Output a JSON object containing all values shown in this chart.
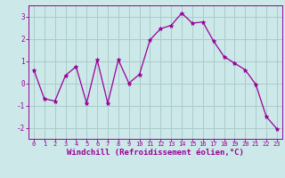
{
  "x": [
    0,
    1,
    2,
    3,
    4,
    5,
    6,
    7,
    8,
    9,
    10,
    11,
    12,
    13,
    14,
    15,
    16,
    17,
    18,
    19,
    20,
    21,
    22,
    23
  ],
  "y": [
    0.6,
    -0.7,
    -0.8,
    0.35,
    0.75,
    -0.9,
    1.05,
    -0.9,
    1.05,
    0.0,
    0.4,
    1.95,
    2.45,
    2.6,
    3.15,
    2.7,
    2.75,
    1.9,
    1.2,
    0.9,
    0.6,
    -0.05,
    -1.5,
    -2.05
  ],
  "line_color": "#990099",
  "marker": "*",
  "marker_size": 3.5,
  "bg_color": "#cce8e8",
  "grid_color": "#aacccc",
  "xlabel": "Windchill (Refroidissement éolien,°C)",
  "xlabel_color": "#990099",
  "tick_color": "#990099",
  "spine_color": "#990099",
  "ylim": [
    -2.5,
    3.5
  ],
  "xlim": [
    -0.5,
    23.5
  ],
  "yticks": [
    -2,
    -1,
    0,
    1,
    2,
    3
  ],
  "xticks": [
    0,
    1,
    2,
    3,
    4,
    5,
    6,
    7,
    8,
    9,
    10,
    11,
    12,
    13,
    14,
    15,
    16,
    17,
    18,
    19,
    20,
    21,
    22,
    23
  ],
  "tick_fontsize": 5.0,
  "ytick_fontsize": 5.5,
  "xlabel_fontsize": 6.5,
  "linewidth": 0.9
}
